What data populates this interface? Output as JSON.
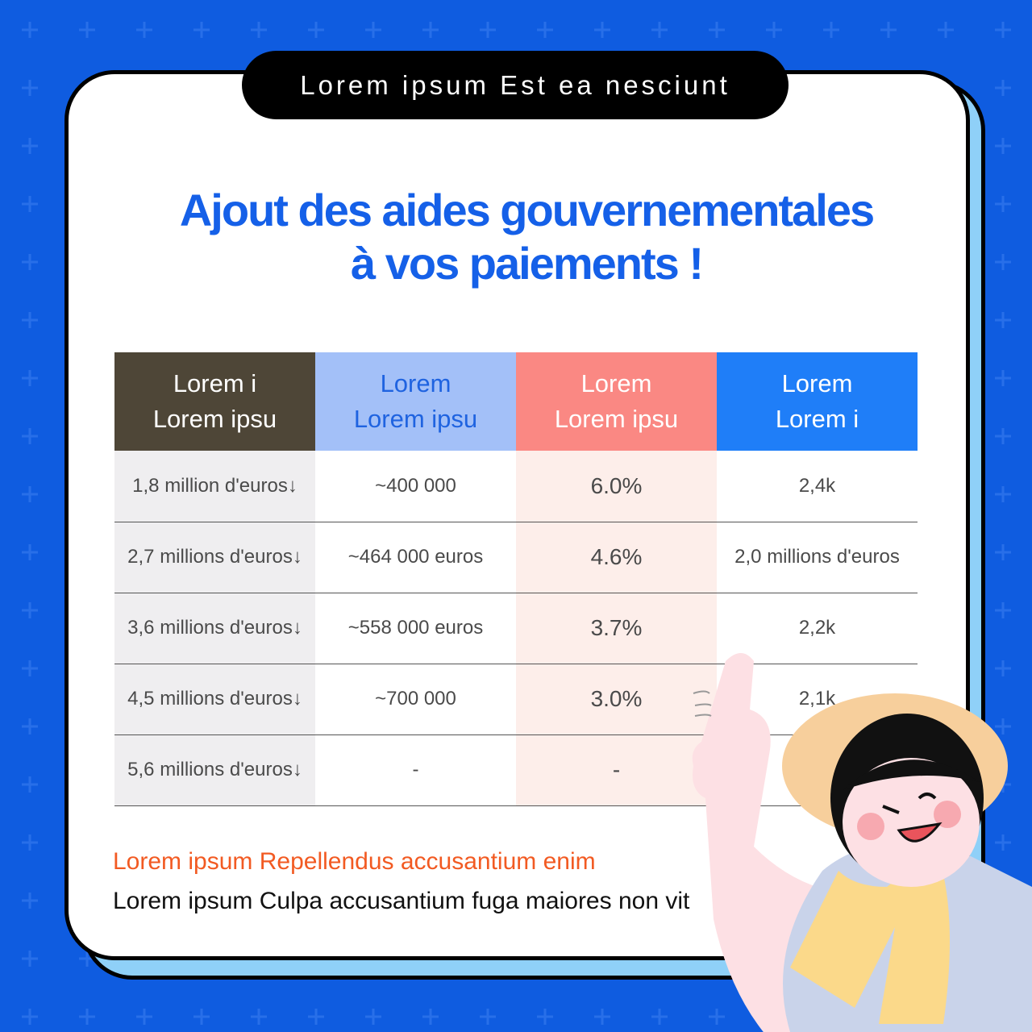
{
  "banner": "Lorem ipsum Est ea nesciunt",
  "title_lines": [
    "Ajout des aides gouvernementales",
    "à vos paiements !"
  ],
  "table": {
    "headers": [
      {
        "line1": "Lorem i",
        "line2": "Lorem ipsu"
      },
      {
        "line1": "Lorem",
        "line2": "Lorem ipsu"
      },
      {
        "line1": "Lorem",
        "line2": "Lorem ipsu"
      },
      {
        "line1": "Lorem",
        "line2": "Lorem i"
      }
    ],
    "header_colors": [
      "#4e4637",
      "#a3c0f8",
      "#fa8883",
      "#1f7ef8"
    ],
    "rows": [
      [
        "1,8 million d'euros↓",
        "~400 000",
        "6.0%",
        "2,4k"
      ],
      [
        "2,7 millions d'euros↓",
        "~464 000 euros",
        "4.6%",
        "2,0 millions d'euros"
      ],
      [
        "3,6 millions d'euros↓",
        "~558 000 euros",
        "3.7%",
        "2,2k"
      ],
      [
        "4,5 millions d'euros↓",
        "~700 000",
        "3.0%",
        "2,1k"
      ],
      [
        "5,6 millions d'euros↓",
        "-",
        "-",
        ""
      ]
    ]
  },
  "notes": {
    "highlight": "Lorem ipsum Repellendus accusantium enim",
    "body": "Lorem ipsum Culpa accusantium fuga maiores non vit"
  },
  "colors": {
    "background": "#0f5ce0",
    "title": "#1560e8",
    "highlight": "#f25a22"
  }
}
